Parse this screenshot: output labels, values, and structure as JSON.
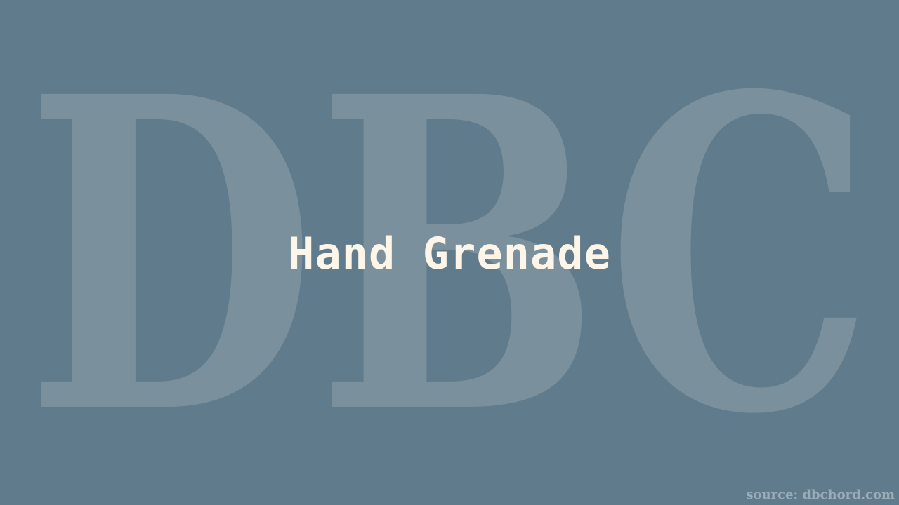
{
  "watermark": {
    "text": "DBC",
    "color": "#7a909c"
  },
  "title": "Hand Grenade",
  "source": {
    "text": "source: dbchord.com",
    "color": "#9aadb8"
  },
  "colors": {
    "background": "#5f7b8c",
    "title": "#fdf6e8"
  }
}
